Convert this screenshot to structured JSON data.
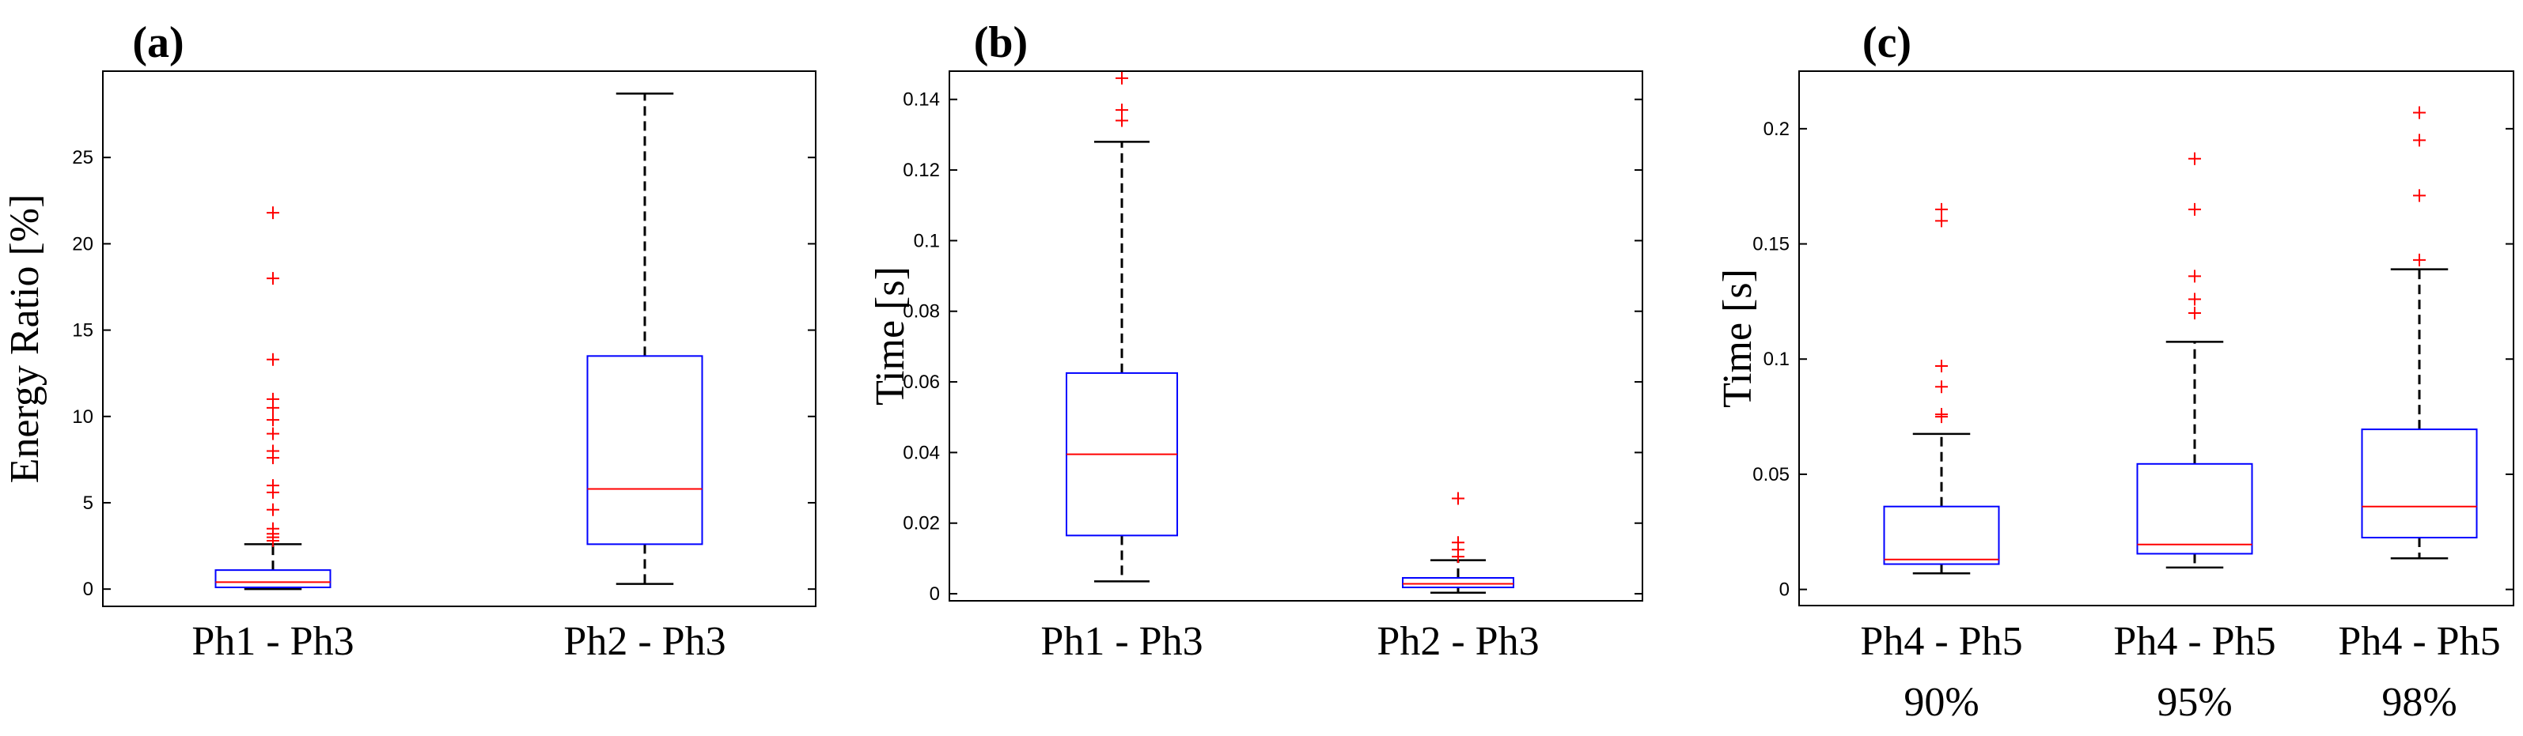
{
  "chart_data": [
    {
      "type": "box",
      "panel_label": "(a)",
      "title": "(a)",
      "xlabel": "",
      "ylabel": "Energy Ratio [%]",
      "ylim": [
        -1,
        30
      ],
      "yticks": [
        0,
        5,
        10,
        15,
        20,
        25
      ],
      "categories": [
        [
          "Ph1 - Ph3"
        ],
        [
          "Ph2 - Ph3"
        ]
      ],
      "boxes": [
        {
          "name": "Ph1 - Ph3",
          "whisker_low": 0,
          "q1": 0.1,
          "median": 0.4,
          "q3": 1.1,
          "whisker_high": 2.6,
          "outliers": [
            21.8,
            18.0,
            13.3,
            11.0,
            10.5,
            9.8,
            9.0,
            8.0,
            7.6,
            6.0,
            5.6,
            4.6,
            3.5,
            3.2,
            3.0,
            2.8
          ]
        },
        {
          "name": "Ph2 - Ph3",
          "whisker_low": 0.3,
          "q1": 2.6,
          "median": 5.8,
          "q3": 13.5,
          "whisker_high": 28.7,
          "outliers": []
        }
      ]
    },
    {
      "type": "box",
      "panel_label": "(b)",
      "title": "(b)",
      "xlabel": "",
      "ylabel": "Time [s]",
      "ylim": [
        -0.002,
        0.148
      ],
      "yticks": [
        0,
        0.02,
        0.04,
        0.06,
        0.08,
        0.1,
        0.12,
        0.14
      ],
      "categories": [
        [
          "Ph1 - Ph3"
        ],
        [
          "Ph2 - Ph3"
        ]
      ],
      "boxes": [
        {
          "name": "Ph1 - Ph3",
          "whisker_low": 0.0035,
          "q1": 0.0165,
          "median": 0.0395,
          "q3": 0.0625,
          "whisker_high": 0.128,
          "outliers": [
            0.146,
            0.137,
            0.134
          ]
        },
        {
          "name": "Ph2 - Ph3",
          "whisker_low": 0.0003,
          "q1": 0.0018,
          "median": 0.0028,
          "q3": 0.0045,
          "whisker_high": 0.0095,
          "outliers": [
            0.027,
            0.0145,
            0.0125,
            0.0105
          ]
        }
      ]
    },
    {
      "type": "box",
      "panel_label": "(c)",
      "title": "(c)",
      "xlabel": "",
      "ylabel": "Time [s]",
      "ylim": [
        -0.007,
        0.225
      ],
      "yticks": [
        0,
        0.05,
        0.1,
        0.15,
        0.2
      ],
      "categories": [
        [
          "Ph4 - Ph5",
          "90%"
        ],
        [
          "Ph4 - Ph5",
          "95%"
        ],
        [
          "Ph4 - Ph5",
          "98%"
        ]
      ],
      "boxes": [
        {
          "name": "Ph4 - Ph5 90%",
          "whisker_low": 0.007,
          "q1": 0.011,
          "median": 0.013,
          "q3": 0.036,
          "whisker_high": 0.0675,
          "outliers": [
            0.165,
            0.16,
            0.097,
            0.088,
            0.076,
            0.075
          ]
        },
        {
          "name": "Ph4 - Ph5 95%",
          "whisker_low": 0.0095,
          "q1": 0.0155,
          "median": 0.0195,
          "q3": 0.0545,
          "whisker_high": 0.1075,
          "outliers": [
            0.187,
            0.165,
            0.136,
            0.126,
            0.12
          ]
        },
        {
          "name": "Ph4 - Ph5 98%",
          "whisker_low": 0.0135,
          "q1": 0.0225,
          "median": 0.036,
          "q3": 0.0695,
          "whisker_high": 0.139,
          "outliers": [
            0.207,
            0.195,
            0.171,
            0.143
          ]
        }
      ]
    }
  ]
}
